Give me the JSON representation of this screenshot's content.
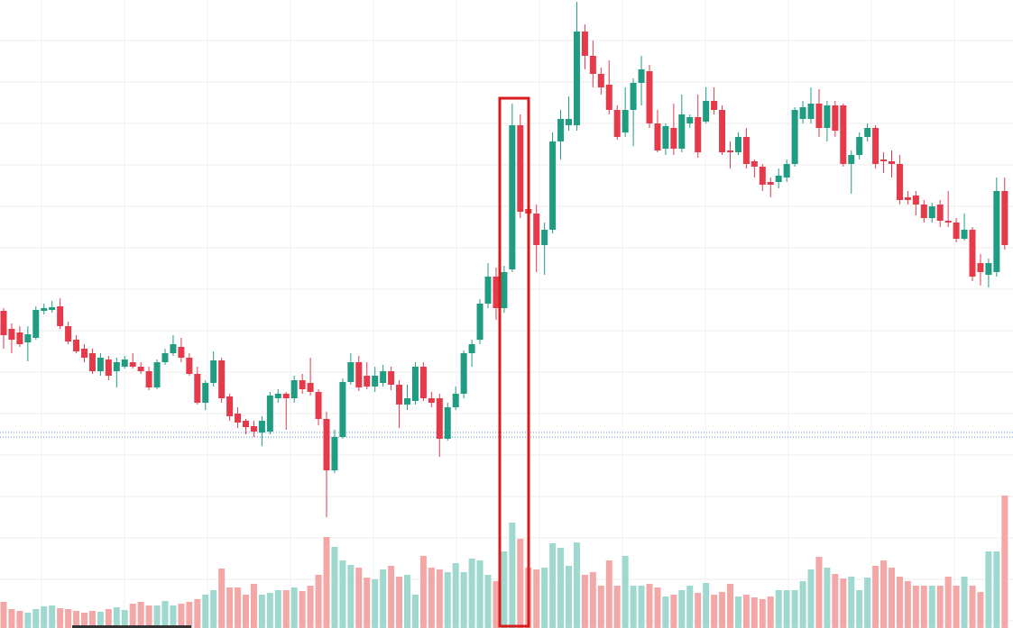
{
  "chart_data": {
    "type": "candlestick",
    "open": [
      352,
      332,
      328,
      317,
      322,
      352,
      353,
      357,
      335,
      320,
      310,
      305,
      285,
      298,
      285,
      290,
      295,
      290,
      285,
      267,
      295,
      305,
      312,
      300,
      282,
      250,
      272,
      297,
      257,
      238,
      230,
      224,
      217,
      218,
      255,
      260,
      255,
      275,
      272,
      262,
      232,
      175,
      212,
      273,
      295,
      280,
      268,
      272,
      285,
      270,
      248,
      252,
      290,
      255,
      255,
      210,
      245,
      260,
      305,
      320,
      360,
      390,
      355,
      398,
      558,
      465,
      460,
      425,
      442,
      540,
      558,
      558,
      662,
      635,
      615,
      603,
      575,
      550,
      575,
      605,
      618,
      560,
      532,
      555,
      532,
      560,
      567,
      562,
      585,
      575,
      530,
      528,
      545,
      518,
      512,
      495,
      495,
      500,
      515,
      565,
      565,
      582,
      555,
      580,
      580,
      515,
      525,
      545,
      555,
      520,
      518,
      515,
      478,
      480,
      470,
      455,
      470,
      452,
      450,
      432,
      442,
      405,
      392,
      395,
      485
    ],
    "high": [
      355,
      338,
      335,
      335,
      357,
      360,
      363,
      366,
      340,
      325,
      315,
      310,
      305,
      302,
      300,
      302,
      305,
      295,
      290,
      298,
      310,
      325,
      322,
      305,
      290,
      275,
      307,
      300,
      260,
      245,
      232,
      230,
      235,
      262,
      265,
      262,
      280,
      282,
      300,
      265,
      240,
      220,
      277,
      305,
      302,
      295,
      290,
      292,
      290,
      275,
      270,
      295,
      295,
      262,
      260,
      250,
      268,
      308,
      320,
      365,
      405,
      400,
      402,
      582,
      570,
      475,
      470,
      450,
      550,
      575,
      590,
      695,
      670,
      652,
      622,
      630,
      580,
      600,
      610,
      635,
      625,
      575,
      560,
      582,
      592,
      570,
      592,
      600,
      600,
      580,
      540,
      550,
      555,
      520,
      515,
      500,
      510,
      520,
      578,
      585,
      600,
      598,
      585,
      585,
      582,
      530,
      550,
      560,
      558,
      528,
      530,
      525,
      485,
      485,
      475,
      472,
      475,
      485,
      455,
      460,
      445,
      415,
      410,
      500,
      500
    ],
    "low": [
      310,
      305,
      312,
      296,
      320,
      348,
      350,
      332,
      315,
      305,
      295,
      282,
      280,
      275,
      267,
      288,
      288,
      282,
      264,
      265,
      292,
      302,
      295,
      280,
      248,
      242,
      268,
      250,
      230,
      222,
      215,
      212,
      202,
      215,
      250,
      220,
      250,
      260,
      258,
      225,
      123,
      172,
      210,
      270,
      263,
      265,
      262,
      268,
      264,
      222,
      242,
      248,
      252,
      245,
      190,
      208,
      242,
      255,
      290,
      315,
      355,
      342,
      350,
      395,
      455,
      440,
      395,
      392,
      438,
      520,
      552,
      552,
      620,
      600,
      592,
      570,
      542,
      545,
      535,
      580,
      555,
      528,
      525,
      525,
      528,
      555,
      522,
      560,
      570,
      525,
      510,
      525,
      510,
      500,
      485,
      478,
      488,
      495,
      512,
      560,
      560,
      545,
      540,
      545,
      512,
      482,
      520,
      540,
      510,
      505,
      500,
      470,
      470,
      458,
      450,
      450,
      445,
      445,
      428,
      430,
      385,
      380,
      378,
      390,
      420
    ],
    "close": [
      325,
      320,
      315,
      326,
      353,
      355,
      356,
      335,
      318,
      307,
      300,
      285,
      300,
      280,
      295,
      298,
      290,
      285,
      267,
      295,
      305,
      315,
      300,
      282,
      250,
      272,
      297,
      255,
      235,
      228,
      223,
      218,
      230,
      258,
      260,
      255,
      275,
      265,
      262,
      232,
      175,
      212,
      273,
      295,
      267,
      268,
      280,
      285,
      270,
      248,
      255,
      290,
      255,
      250,
      210,
      245,
      260,
      305,
      315,
      360,
      390,
      355,
      395,
      558,
      462,
      460,
      425,
      442,
      540,
      565,
      565,
      662,
      635,
      615,
      600,
      575,
      545,
      575,
      605,
      620,
      560,
      530,
      557,
      532,
      570,
      567,
      528,
      585,
      575,
      528,
      528,
      545,
      515,
      512,
      492,
      492,
      502,
      515,
      575,
      578,
      582,
      555,
      580,
      552,
      515,
      525,
      545,
      555,
      515,
      518,
      515,
      475,
      475,
      470,
      455,
      468,
      452,
      450,
      432,
      442,
      390,
      395,
      405,
      485,
      425
    ],
    "volume": [
      29,
      21,
      19,
      17,
      21,
      24,
      25,
      22,
      21,
      19,
      17,
      19,
      18,
      21,
      23,
      20,
      27,
      29,
      25,
      25,
      30,
      25,
      27,
      29,
      32,
      37,
      42,
      66,
      45,
      45,
      37,
      49,
      37,
      39,
      42,
      42,
      45,
      41,
      47,
      59,
      101,
      90,
      75,
      70,
      67,
      56,
      54,
      65,
      69,
      57,
      59,
      37,
      80,
      67,
      65,
      62,
      72,
      62,
      77,
      75,
      59,
      52,
      85,
      117,
      99,
      67,
      65,
      67,
      94,
      89,
      69,
      95,
      59,
      62,
      47,
      75,
      47,
      80,
      47,
      47,
      49,
      45,
      35,
      37,
      42,
      47,
      39,
      50,
      37,
      40,
      49,
      35,
      37,
      34,
      32,
      35,
      42,
      42,
      42,
      52,
      65,
      79,
      67,
      60,
      55,
      57,
      42,
      56,
      69,
      75,
      67,
      57,
      52,
      47,
      47,
      47,
      47,
      57,
      47,
      57,
      47,
      40,
      85,
      85,
      147
    ],
    "ylim": [
      0,
      700
    ],
    "y2lim": [
      0,
      700
    ],
    "up_color": "#1f9c82",
    "down_color": "#e6394a",
    "volume_up_color": "#9ed8cf",
    "volume_down_color": "#f4a7a7",
    "grid": true
  }
}
